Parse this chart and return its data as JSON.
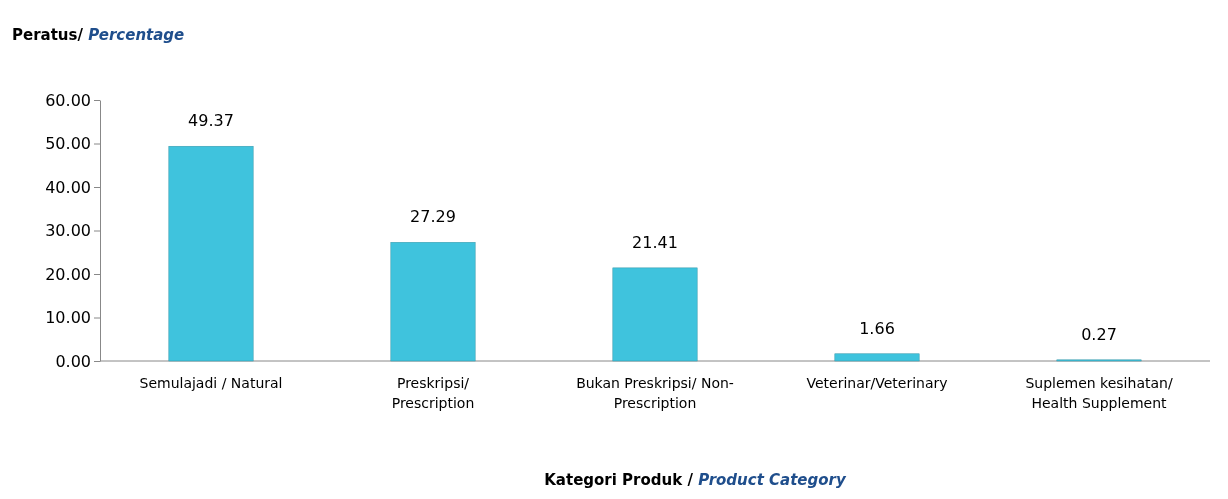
{
  "chart_data": {
    "type": "bar",
    "ylabel": "Peratus/ Percentage",
    "xlabel": "Kategori Produk / Product Category",
    "categories": [
      "Semulajadi / Natural",
      "Preskripsi/\nPrescription",
      "Bukan Preskripsi/ Non-\nPrescription",
      "Veterinar/Veterinary",
      "Suplemen kesihatan/\nHealth Supplement"
    ],
    "values": [
      49.37,
      27.29,
      21.41,
      1.66,
      0.27
    ],
    "color": "#3fc3dd",
    "data_labels": true,
    "ylim": [
      0,
      60
    ],
    "yticks": [
      {
        "value": 0,
        "label": "0.00"
      },
      {
        "value": 10,
        "label": "10.00"
      },
      {
        "value": 20,
        "label": "20.00"
      },
      {
        "value": 30,
        "label": "30.00"
      },
      {
        "value": 40,
        "label": "40.00"
      },
      {
        "value": 50,
        "label": "50.00"
      },
      {
        "value": 60,
        "label": "60.00"
      }
    ]
  }
}
